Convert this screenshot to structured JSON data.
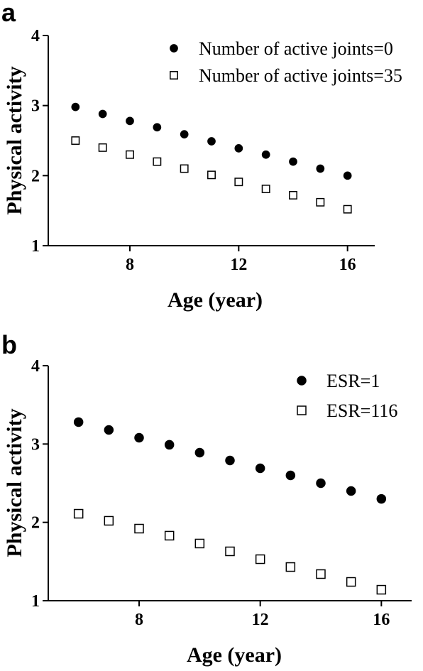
{
  "chart_data": [
    {
      "type": "scatter",
      "panel_label": "a",
      "xlabel": "Age (year)",
      "ylabel": "Physical activity",
      "xlim": [
        5,
        17
      ],
      "ylim": [
        1,
        4
      ],
      "xticks": [
        8,
        12,
        16
      ],
      "yticks": [
        1,
        2,
        3,
        4
      ],
      "legend_position": "top-right",
      "series": [
        {
          "name": "Number of active joints=0",
          "marker": "filled-circle",
          "x": [
            6,
            7,
            8,
            9,
            10,
            11,
            12,
            13,
            14,
            15,
            16
          ],
          "y": [
            2.98,
            2.88,
            2.78,
            2.69,
            2.59,
            2.49,
            2.39,
            2.3,
            2.2,
            2.1,
            2.0
          ]
        },
        {
          "name": "Number of active joints=35",
          "marker": "open-square",
          "x": [
            6,
            7,
            8,
            9,
            10,
            11,
            12,
            13,
            14,
            15,
            16
          ],
          "y": [
            2.5,
            2.4,
            2.3,
            2.2,
            2.1,
            2.01,
            1.91,
            1.81,
            1.72,
            1.62,
            1.52
          ]
        }
      ]
    },
    {
      "type": "scatter",
      "panel_label": "b",
      "xlabel": "Age (year)",
      "ylabel": "Physical activity",
      "xlim": [
        5,
        17
      ],
      "ylim": [
        1,
        4
      ],
      "xticks": [
        8,
        12,
        16
      ],
      "yticks": [
        1,
        2,
        3,
        4
      ],
      "legend_position": "top-right",
      "series": [
        {
          "name": "ESR=1",
          "marker": "filled-circle",
          "x": [
            6,
            7,
            8,
            9,
            10,
            11,
            12,
            13,
            14,
            15,
            16
          ],
          "y": [
            3.28,
            3.18,
            3.08,
            2.99,
            2.89,
            2.79,
            2.69,
            2.6,
            2.5,
            2.4,
            2.3
          ]
        },
        {
          "name": "ESR=116",
          "marker": "open-square",
          "x": [
            6,
            7,
            8,
            9,
            10,
            11,
            12,
            13,
            14,
            15,
            16
          ],
          "y": [
            2.11,
            2.02,
            1.92,
            1.83,
            1.73,
            1.63,
            1.53,
            1.43,
            1.34,
            1.24,
            1.14
          ]
        }
      ]
    }
  ]
}
